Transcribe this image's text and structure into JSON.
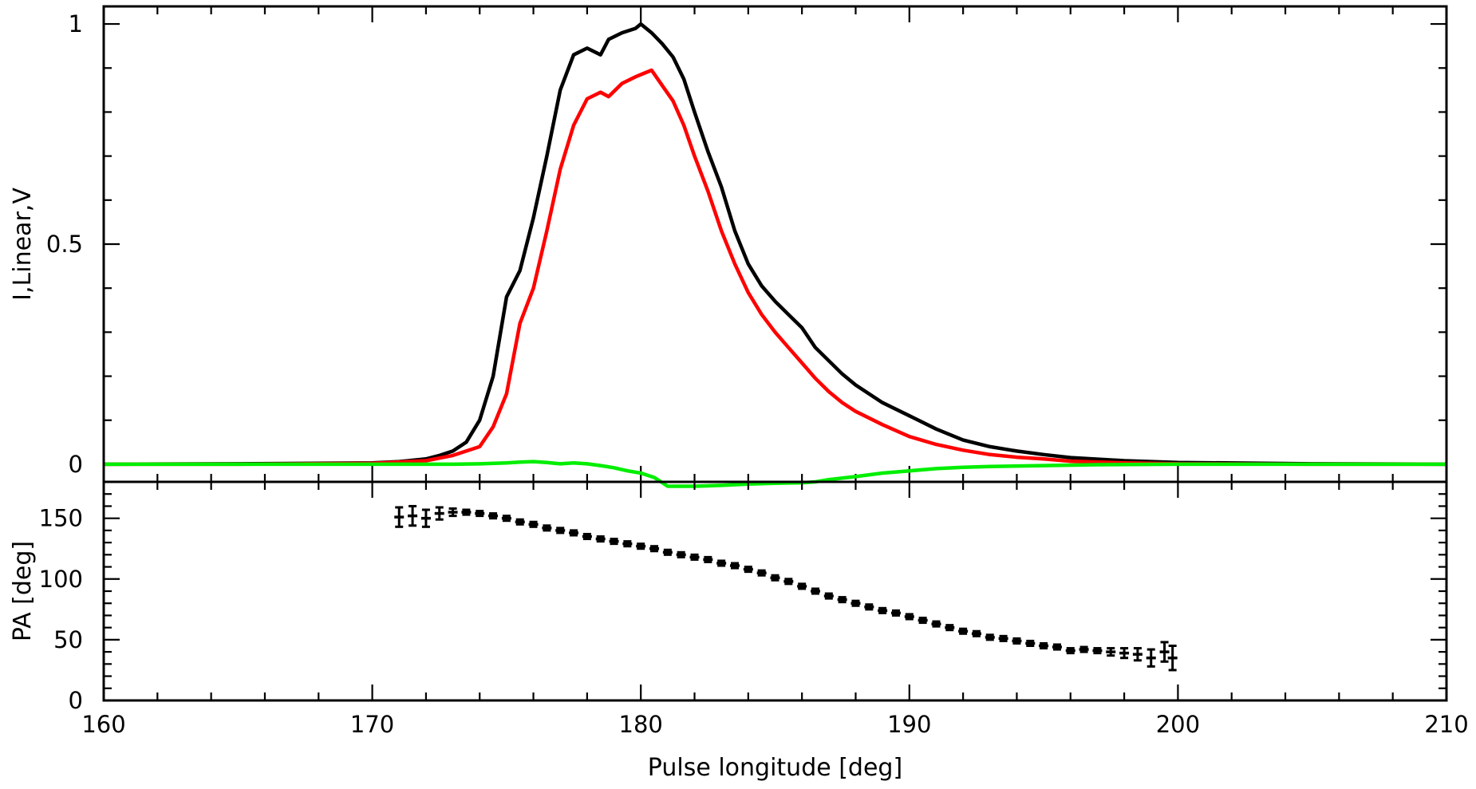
{
  "chart_data": [
    {
      "type": "line",
      "title": "",
      "xlabel": "",
      "ylabel": "I,Linear,V",
      "xlim": [
        160,
        210
      ],
      "ylim": [
        -0.04,
        1.04
      ],
      "xticks": [
        "160",
        "170",
        "180",
        "190",
        "200",
        "210"
      ],
      "yticks": [
        "0",
        "0.5",
        "1"
      ],
      "grid": false,
      "legend": "none",
      "series": [
        {
          "color": "#000000",
          "x": [
            160,
            165,
            168,
            170,
            171,
            172,
            172.5,
            173,
            173.5,
            174,
            174.5,
            175,
            175.5,
            176,
            176.5,
            177,
            177.5,
            178,
            178.5,
            178.8,
            179.3,
            179.8,
            180,
            180.4,
            180.8,
            181.2,
            181.6,
            182,
            182.5,
            183,
            183.5,
            184,
            184.5,
            185,
            185.5,
            186,
            186.5,
            187,
            187.5,
            188,
            189,
            190,
            191,
            192,
            193,
            194,
            195,
            196,
            198,
            200,
            205,
            210
          ],
          "y": [
            0,
            0.001,
            0.002,
            0.003,
            0.006,
            0.012,
            0.02,
            0.03,
            0.05,
            0.1,
            0.2,
            0.38,
            0.44,
            0.56,
            0.7,
            0.85,
            0.93,
            0.945,
            0.93,
            0.965,
            0.98,
            0.99,
            1.0,
            0.98,
            0.955,
            0.925,
            0.875,
            0.8,
            0.71,
            0.63,
            0.53,
            0.455,
            0.405,
            0.37,
            0.34,
            0.31,
            0.265,
            0.235,
            0.205,
            0.18,
            0.14,
            0.11,
            0.08,
            0.055,
            0.04,
            0.03,
            0.022,
            0.015,
            0.008,
            0.004,
            0.001,
            0
          ]
        },
        {
          "color": "#ff0000",
          "x": [
            160,
            165,
            170,
            172,
            173,
            174,
            174.5,
            175,
            175.5,
            176,
            176.5,
            177,
            177.5,
            178,
            178.5,
            178.8,
            179.3,
            179.8,
            180,
            180.4,
            180.8,
            181.2,
            181.6,
            182,
            182.5,
            183,
            183.5,
            184,
            184.5,
            185,
            185.5,
            186,
            186.5,
            187,
            187.5,
            188,
            189,
            190,
            191,
            192,
            193,
            194,
            195,
            196,
            198,
            200,
            205,
            210
          ],
          "y": [
            0,
            0,
            0.002,
            0.008,
            0.02,
            0.04,
            0.085,
            0.16,
            0.32,
            0.4,
            0.53,
            0.67,
            0.77,
            0.83,
            0.845,
            0.835,
            0.865,
            0.88,
            0.885,
            0.895,
            0.86,
            0.825,
            0.77,
            0.7,
            0.62,
            0.53,
            0.455,
            0.39,
            0.34,
            0.3,
            0.265,
            0.23,
            0.195,
            0.165,
            0.14,
            0.12,
            0.09,
            0.063,
            0.045,
            0.032,
            0.022,
            0.016,
            0.012,
            0.007,
            0.003,
            0.001,
            0,
            0
          ]
        },
        {
          "color": "#00ee00",
          "x": [
            160,
            165,
            170,
            173,
            174,
            175,
            175.5,
            176,
            176.5,
            177,
            177.5,
            178,
            178.5,
            179,
            179.5,
            180,
            180.5,
            181,
            182,
            183,
            184,
            185,
            186,
            186.5,
            187,
            188,
            189,
            190,
            191,
            192,
            193,
            195,
            197,
            200,
            205,
            210
          ],
          "y": [
            0,
            0,
            0,
            0,
            0.001,
            0.003,
            0.005,
            0.006,
            0.004,
            0.001,
            0.003,
            0.001,
            -0.003,
            -0.008,
            -0.015,
            -0.02,
            -0.03,
            -0.05,
            -0.05,
            -0.048,
            -0.045,
            -0.043,
            -0.042,
            -0.04,
            -0.035,
            -0.028,
            -0.02,
            -0.015,
            -0.01,
            -0.007,
            -0.005,
            -0.003,
            -0.001,
            0,
            0,
            0
          ]
        }
      ]
    },
    {
      "type": "scatter",
      "title": "",
      "xlabel": "Pulse longitude [deg]",
      "ylabel": "PA [deg]",
      "xlim": [
        160,
        210
      ],
      "ylim": [
        0,
        180
      ],
      "xticks": [
        "160",
        "170",
        "180",
        "190",
        "200",
        "210"
      ],
      "yticks": [
        "0",
        "50",
        "100",
        "150"
      ],
      "grid": false,
      "legend": "none",
      "series": [
        {
          "color": "#000000",
          "x": [
            171,
            171.5,
            172,
            172.5,
            173,
            173.5,
            174,
            174.5,
            175,
            175.5,
            176,
            176.5,
            177,
            177.5,
            178,
            178.5,
            179,
            179.5,
            180,
            180.5,
            181,
            181.5,
            182,
            182.5,
            183,
            183.5,
            184,
            184.5,
            185,
            185.5,
            186,
            186.5,
            187,
            187.5,
            188,
            188.5,
            189,
            189.5,
            190,
            190.5,
            191,
            191.5,
            192,
            192.5,
            193,
            193.5,
            194,
            194.5,
            195,
            195.5,
            196,
            196.5,
            197,
            197.5,
            198,
            198.5,
            199,
            199.5,
            199.8
          ],
          "y": [
            151,
            152,
            150,
            154,
            155,
            155,
            154,
            152,
            150,
            147,
            145,
            142,
            140,
            138,
            135,
            133,
            131,
            129,
            127,
            125,
            122,
            120,
            118,
            116,
            113,
            111,
            108,
            105,
            101,
            98,
            94,
            90,
            86,
            83,
            80,
            77,
            74,
            72,
            69,
            66,
            63,
            60,
            57,
            55,
            52,
            51,
            49,
            47,
            45,
            44,
            41,
            42,
            41,
            40,
            39,
            38,
            35,
            40,
            35
          ],
          "err": [
            8,
            8,
            7,
            5,
            3,
            2,
            2,
            2,
            2,
            2,
            2,
            2,
            2,
            2,
            2,
            2,
            2,
            2,
            2,
            2,
            2,
            2,
            2,
            2,
            2,
            2,
            2,
            2,
            2,
            2,
            2,
            2,
            2,
            2,
            2,
            2,
            2,
            2,
            2,
            2,
            2,
            2,
            2,
            2,
            2,
            2,
            2,
            2,
            2,
            2,
            2,
            2,
            2,
            3,
            4,
            5,
            7,
            8,
            10
          ]
        }
      ]
    }
  ]
}
